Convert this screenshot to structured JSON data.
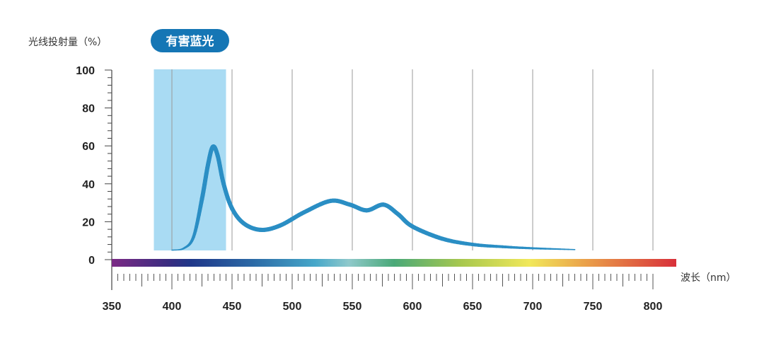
{
  "chart_data": {
    "type": "line",
    "ylabel": "光线投射量（%）",
    "xlabel": "波长（nm）",
    "xlim": [
      350,
      820
    ],
    "ylim": [
      0,
      100
    ],
    "x_ticks": [
      350,
      400,
      450,
      500,
      550,
      600,
      650,
      700,
      750,
      800
    ],
    "y_ticks": [
      0,
      20,
      40,
      60,
      80,
      100
    ],
    "x_tick_labels": [
      "350",
      "400",
      "450",
      "500",
      "550",
      "600",
      "650",
      "700",
      "750",
      "800"
    ],
    "y_tick_labels": [
      "0",
      "20",
      "40",
      "60",
      "80",
      "100"
    ],
    "grid": "vertical lines at 400-800",
    "highlight": {
      "label": "有害蓝光",
      "range": [
        385,
        445
      ],
      "color": "#a9dbf3"
    },
    "series": [
      {
        "color": "#2a8ec4",
        "x": [
          400,
          410,
          418,
          425,
          430,
          434,
          438,
          443,
          450,
          460,
          474,
          490,
          510,
          532,
          548,
          562,
          576,
          588,
          600,
          625,
          650,
          675,
          700,
          735
        ],
        "y": [
          5,
          6,
          12,
          32,
          50,
          59.5,
          55,
          40,
          27,
          19,
          15.7,
          18,
          25,
          31,
          29,
          26,
          29,
          24,
          17.5,
          11,
          8,
          6.8,
          6,
          5.3
        ]
      }
    ],
    "spectrum_bar": true,
    "badge_color": "#1576b5"
  }
}
